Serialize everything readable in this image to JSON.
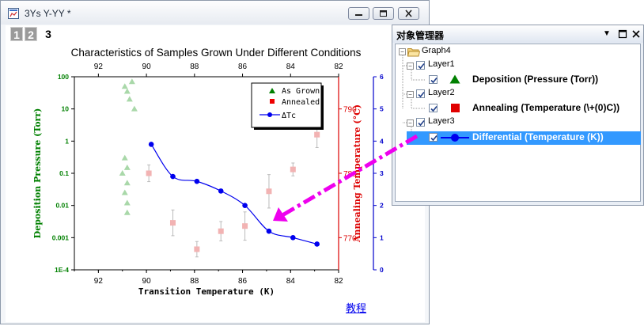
{
  "window": {
    "title": "3Ys Y-YY *",
    "layer_tabs": [
      "1",
      "2",
      "3"
    ],
    "active_tab": "3",
    "tutorial_link": "教程"
  },
  "chart_data": {
    "type": "scatter",
    "title": "Characteristics of Samples Grown Under Different Conditions",
    "xlabel": "Transition Temperature (K)",
    "x_range": [
      93,
      82
    ],
    "x_ticks": [
      "92",
      "90",
      "88",
      "86",
      "84",
      "82"
    ],
    "top_x_ticks": [
      "92",
      "90",
      "88",
      "86",
      "84",
      "82"
    ],
    "y_left": {
      "label": "Deposition Pressure (Torr)",
      "scale": "log",
      "range": [
        0.0001,
        100
      ],
      "ticks": [
        "100",
        "10",
        "1",
        "0.1",
        "0.01",
        "0.001",
        "1E-4"
      ],
      "color": "#008000"
    },
    "y_right_1": {
      "label": "Annealing Temperature (°C)",
      "range": [
        765,
        795
      ],
      "ticks": [
        "790",
        "780",
        "770"
      ],
      "color": "#dd0000"
    },
    "y_right_2": {
      "range": [
        0,
        6
      ],
      "ticks": [
        "0",
        "1",
        "2",
        "3",
        "4",
        "5",
        "6"
      ],
      "color": "#0000cc"
    },
    "legend": {
      "position": "top-right",
      "entries": [
        "As Grown",
        "Annealed",
        "ΔTc"
      ]
    },
    "series": [
      {
        "name": "As Grown",
        "marker": "triangle",
        "color": "#a9d8a9",
        "points": [
          {
            "x": 90.6,
            "y": 70
          },
          {
            "x": 90.9,
            "y": 50
          },
          {
            "x": 90.8,
            "y": 35
          },
          {
            "x": 90.7,
            "y": 20
          },
          {
            "x": 90.5,
            "y": 10
          },
          {
            "x": 90.9,
            "y": 0.3
          },
          {
            "x": 90.8,
            "y": 0.15
          },
          {
            "x": 91.0,
            "y": 0.1
          },
          {
            "x": 90.8,
            "y": 0.05
          },
          {
            "x": 90.9,
            "y": 0.025
          },
          {
            "x": 90.8,
            "y": 0.012
          },
          {
            "x": 90.8,
            "y": 0.006
          }
        ]
      },
      {
        "name": "Annealed",
        "marker": "square",
        "color": "#f2b3b3",
        "points": [
          {
            "x": 89.9,
            "y": 780.0,
            "err": 1.3
          },
          {
            "x": 88.9,
            "y": 772.3,
            "err": 2.0
          },
          {
            "x": 87.9,
            "y": 768.2,
            "err": 1.2
          },
          {
            "x": 86.9,
            "y": 771.0,
            "err": 1.5
          },
          {
            "x": 85.9,
            "y": 771.8,
            "err": 2.2
          },
          {
            "x": 84.9,
            "y": 777.2,
            "err": 2.6
          },
          {
            "x": 83.9,
            "y": 780.6,
            "err": 1.0
          },
          {
            "x": 82.9,
            "y": 786.0,
            "err": 2.0
          }
        ]
      },
      {
        "name": "ΔTc",
        "marker": "circle",
        "color": "#0000ee",
        "points": [
          {
            "x": 89.8,
            "y": 3.9
          },
          {
            "x": 88.9,
            "y": 2.9
          },
          {
            "x": 87.9,
            "y": 2.75
          },
          {
            "x": 86.9,
            "y": 2.45
          },
          {
            "x": 85.9,
            "y": 2.0
          },
          {
            "x": 84.9,
            "y": 1.2
          },
          {
            "x": 83.9,
            "y": 1.0
          },
          {
            "x": 82.9,
            "y": 0.8
          }
        ]
      }
    ]
  },
  "object_manager": {
    "title": "对象管理器",
    "controls": {
      "dropdown": "▼",
      "restore": "□",
      "close": "✕"
    },
    "tree": {
      "graph": "Graph4",
      "layers": [
        {
          "name": "Layer1",
          "plot": "Deposition (Pressure (Torr))",
          "icon": "triangle",
          "icon_color": "#008000"
        },
        {
          "name": "Layer2",
          "plot": "Annealing (Temperature (\\+(0)C))",
          "icon": "square",
          "icon_color": "#e00000"
        },
        {
          "name": "Layer3",
          "plot": "Differential (Temperature (K))",
          "icon": "line-circle",
          "icon_color": "#0000ee"
        }
      ],
      "selected": "Differential (Temperature (K))"
    }
  },
  "arrow": {
    "color": "#ee00ee"
  }
}
